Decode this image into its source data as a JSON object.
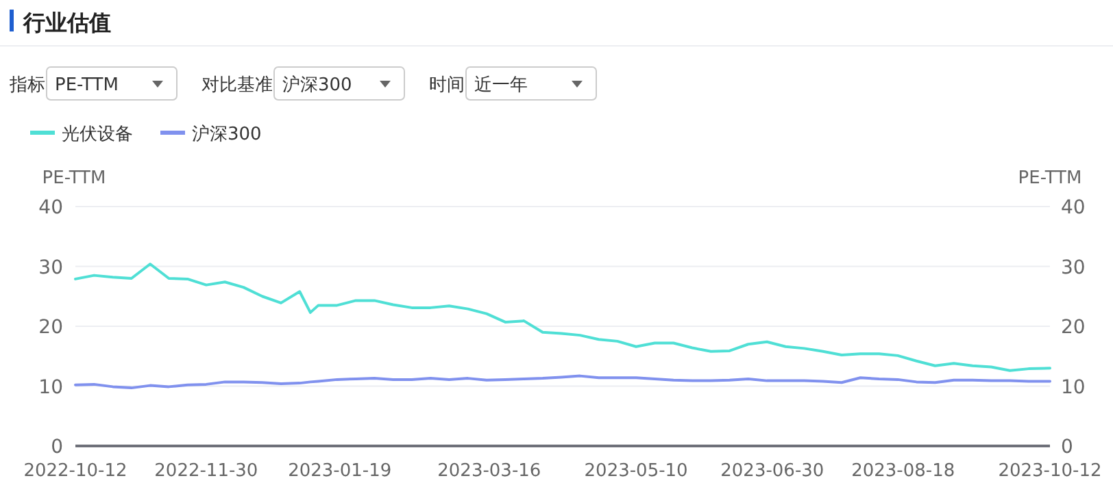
{
  "chart_data": {
    "type": "line",
    "title": "行业估值",
    "annotations": [
      "指标",
      "PE-TTM",
      "对比基准",
      "沪深300",
      "时间",
      "近一年"
    ],
    "ylabel": "PE-TTM",
    "y2label": "PE-TTM",
    "ylim": [
      0,
      40
    ],
    "yticks": [
      0,
      10,
      20,
      30,
      40
    ],
    "y2lim": [
      0,
      40
    ],
    "y2ticks": [
      0,
      10,
      20,
      30,
      40
    ],
    "xlim": [
      "2022-10-12",
      "2023-10-12"
    ],
    "xticks": [
      "2022-10-12",
      "2022-11-30",
      "2023-01-19",
      "2023-03-16",
      "2023-05-10",
      "2023-06-30",
      "2023-08-18",
      "2023-10-12"
    ],
    "x": [
      "2022-10-12",
      "2022-10-19",
      "2022-10-26",
      "2022-11-02",
      "2022-11-09",
      "2022-11-16",
      "2022-11-23",
      "2022-11-30",
      "2022-12-07",
      "2022-12-14",
      "2022-12-21",
      "2022-12-28",
      "2023-01-04",
      "2023-01-08",
      "2023-01-11",
      "2023-01-18",
      "2023-01-25",
      "2023-02-01",
      "2023-02-08",
      "2023-02-15",
      "2023-02-22",
      "2023-03-01",
      "2023-03-08",
      "2023-03-15",
      "2023-03-22",
      "2023-03-29",
      "2023-04-05",
      "2023-04-12",
      "2023-04-19",
      "2023-04-26",
      "2023-05-03",
      "2023-05-10",
      "2023-05-17",
      "2023-05-24",
      "2023-05-31",
      "2023-06-07",
      "2023-06-14",
      "2023-06-21",
      "2023-06-28",
      "2023-07-05",
      "2023-07-12",
      "2023-07-19",
      "2023-07-26",
      "2023-08-02",
      "2023-08-09",
      "2023-08-16",
      "2023-08-23",
      "2023-08-30",
      "2023-09-06",
      "2023-09-13",
      "2023-09-20",
      "2023-09-27",
      "2023-10-04",
      "2023-10-12"
    ],
    "series": [
      {
        "name": "光伏设备",
        "color": "#4fdfd5",
        "values": [
          27.9,
          28.5,
          28.2,
          28.0,
          30.4,
          28.0,
          27.9,
          26.9,
          27.4,
          26.5,
          25.0,
          23.9,
          25.8,
          22.3,
          23.5,
          23.5,
          24.3,
          24.3,
          23.6,
          23.1,
          23.1,
          23.4,
          22.9,
          22.1,
          20.7,
          20.9,
          19.0,
          18.8,
          18.5,
          17.8,
          17.5,
          16.6,
          17.2,
          17.2,
          16.4,
          15.8,
          15.9,
          17.0,
          17.4,
          16.6,
          16.3,
          15.8,
          15.2,
          15.4,
          15.4,
          15.1,
          14.2,
          13.4,
          13.8,
          13.4,
          13.2,
          12.6,
          12.9,
          13.0
        ]
      },
      {
        "name": "沪深300",
        "color": "#8091ee",
        "values": [
          10.2,
          10.3,
          9.9,
          9.7,
          10.1,
          9.9,
          10.2,
          10.3,
          10.7,
          10.7,
          10.6,
          10.4,
          10.5,
          10.7,
          10.8,
          11.1,
          11.2,
          11.3,
          11.1,
          11.1,
          11.3,
          11.1,
          11.3,
          11.0,
          11.1,
          11.2,
          11.3,
          11.5,
          11.7,
          11.4,
          11.4,
          11.4,
          11.2,
          11.0,
          10.9,
          10.9,
          11.0,
          11.2,
          10.9,
          10.9,
          10.9,
          10.8,
          10.6,
          11.4,
          11.2,
          11.1,
          10.7,
          10.6,
          11.0,
          11.0,
          10.9,
          10.9,
          10.8,
          10.8
        ]
      }
    ],
    "grid": "y",
    "legend": "top left",
    "marker": "none",
    "line_style": "solid"
  }
}
